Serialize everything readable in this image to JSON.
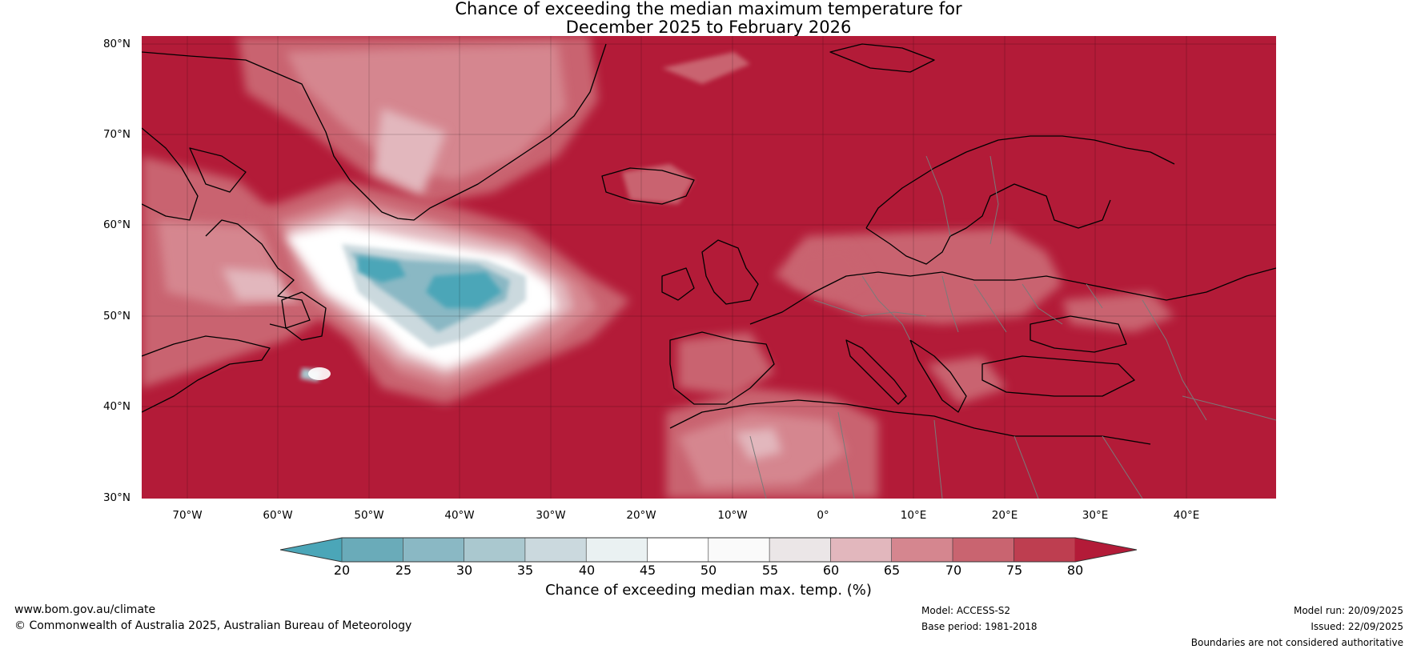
{
  "title": {
    "line1": "Chance of exceeding the median maximum temperature for",
    "line2": "December 2025 to February 2026"
  },
  "map": {
    "lat_labels": [
      "80°N",
      "70°N",
      "60°N",
      "50°N",
      "40°N",
      "30°N"
    ],
    "lon_labels": [
      "70°W",
      "60°W",
      "50°W",
      "40°W",
      "30°W",
      "20°W",
      "10°W",
      "0°",
      "10°E",
      "20°E",
      "30°E",
      "40°E"
    ],
    "ocean_color": "#b31b38"
  },
  "colorbar": {
    "ticks": [
      "20",
      "25",
      "30",
      "35",
      "40",
      "45",
      "50",
      "55",
      "60",
      "65",
      "70",
      "75",
      "80"
    ],
    "colors": [
      "#4ba6b8",
      "#6aabb9",
      "#8ab8c4",
      "#aac8cf",
      "#cbd9de",
      "#eaf1f2",
      "#ffffff",
      "#fafafa",
      "#ebe6e7",
      "#e2b7bd",
      "#d5868f",
      "#c96470",
      "#be3e50",
      "#b31b38"
    ],
    "label": "Chance of exceeding median max. temp. (%)"
  },
  "footer": {
    "website": "www.bom.gov.au/climate",
    "copyright": "© Commonwealth of Australia 2025, Australian Bureau of Meteorology",
    "model": "Model: ACCESS-S2",
    "base_period": "Base period: 1981-2018",
    "model_run": "Model run: 20/09/2025",
    "issued": "Issued: 22/09/2025",
    "disclaimer": "Boundaries are not considered authoritative"
  }
}
